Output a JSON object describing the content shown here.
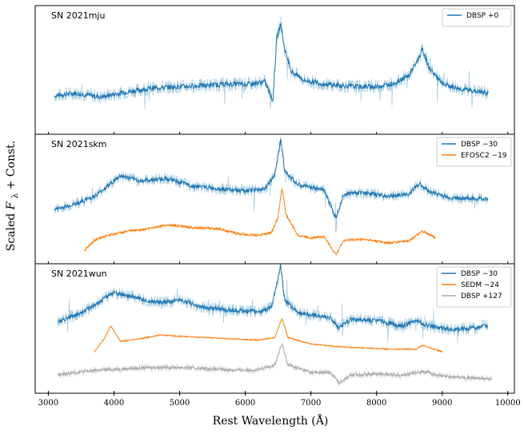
{
  "chart_data": {
    "type": "line",
    "xlabel": "Rest Wavelength (Å)",
    "ylabel": "Scaled F_λ + Const.",
    "ylabel_parts": {
      "main": "Scaled ",
      "sym": "F",
      "sub": "λ",
      "rest": " + Const."
    },
    "xlim": [
      2800,
      10100
    ],
    "xticks": [
      3000,
      4000,
      5000,
      6000,
      7000,
      8000,
      9000,
      10000
    ],
    "xtick_labels": [
      "3000",
      "4000",
      "5000",
      "6000",
      "7000",
      "8000",
      "9000",
      "10000"
    ],
    "panels": [
      {
        "name": "SN 2021mju",
        "ylim": [
          0,
          10
        ],
        "series": [
          {
            "name": "DBSP +0",
            "color": "#1f77b4",
            "legend": "DBSP +0",
            "noise": 0.55,
            "points": [
              [
                3100,
                3.0
              ],
              [
                3400,
                3.2
              ],
              [
                3800,
                2.9
              ],
              [
                4200,
                3.3
              ],
              [
                4600,
                3.6
              ],
              [
                5000,
                3.7
              ],
              [
                5400,
                3.8
              ],
              [
                5800,
                3.9
              ],
              [
                6100,
                3.9
              ],
              [
                6300,
                4.1
              ],
              [
                6420,
                2.6
              ],
              [
                6480,
                7.5
              ],
              [
                6540,
                8.6
              ],
              [
                6600,
                6.6
              ],
              [
                6700,
                4.9
              ],
              [
                6900,
                4.2
              ],
              [
                7200,
                3.9
              ],
              [
                7400,
                3.8
              ],
              [
                7700,
                3.7
              ],
              [
                8000,
                3.7
              ],
              [
                8300,
                4.0
              ],
              [
                8500,
                4.6
              ],
              [
                8650,
                6.0
              ],
              [
                8700,
                6.6
              ],
              [
                8800,
                5.2
              ],
              [
                9000,
                3.9
              ],
              [
                9300,
                3.5
              ],
              [
                9700,
                3.2
              ]
            ]
          }
        ],
        "legend": [
          "DBSP +0"
        ]
      },
      {
        "name": "SN 2021skm",
        "ylim": [
          0,
          10
        ],
        "series": [
          {
            "name": "DBSP -30",
            "color": "#1f77b4",
            "legend": "DBSP −30",
            "noise": 0.45,
            "points": [
              [
                3100,
                4.2
              ],
              [
                3400,
                4.6
              ],
              [
                3700,
                5.2
              ],
              [
                3900,
                6.0
              ],
              [
                4100,
                6.8
              ],
              [
                4400,
                6.4
              ],
              [
                4800,
                6.6
              ],
              [
                5200,
                6.0
              ],
              [
                5600,
                5.8
              ],
              [
                6000,
                5.6
              ],
              [
                6300,
                5.8
              ],
              [
                6450,
                6.8
              ],
              [
                6540,
                9.6
              ],
              [
                6600,
                7.2
              ],
              [
                6800,
                6.1
              ],
              [
                7000,
                5.9
              ],
              [
                7200,
                5.7
              ],
              [
                7380,
                3.6
              ],
              [
                7500,
                5.4
              ],
              [
                7800,
                5.5
              ],
              [
                8200,
                5.2
              ],
              [
                8500,
                5.4
              ],
              [
                8650,
                6.2
              ],
              [
                8800,
                5.6
              ],
              [
                9100,
                5.1
              ],
              [
                9700,
                5.0
              ]
            ]
          },
          {
            "name": "EFOSC2 -19",
            "color": "#ff7f0e",
            "legend": "EFOSC2 −19",
            "noise": 0.25,
            "points": [
              [
                3550,
                1.0
              ],
              [
                3700,
                1.8
              ],
              [
                3900,
                2.2
              ],
              [
                4200,
                2.5
              ],
              [
                4500,
                2.7
              ],
              [
                4800,
                3.0
              ],
              [
                5200,
                2.8
              ],
              [
                5600,
                2.7
              ],
              [
                5900,
                2.3
              ],
              [
                6200,
                2.2
              ],
              [
                6400,
                2.4
              ],
              [
                6500,
                3.6
              ],
              [
                6560,
                5.9
              ],
              [
                6620,
                3.8
              ],
              [
                6800,
                2.2
              ],
              [
                7000,
                2.0
              ],
              [
                7200,
                2.1
              ],
              [
                7380,
                0.7
              ],
              [
                7500,
                1.8
              ],
              [
                7800,
                1.9
              ],
              [
                8200,
                1.6
              ],
              [
                8500,
                1.8
              ],
              [
                8700,
                2.5
              ],
              [
                8900,
                2.0
              ]
            ]
          }
        ],
        "legend": [
          "DBSP −30",
          "EFOSC2 −19"
        ]
      },
      {
        "name": "SN 2021wun",
        "ylim": [
          0,
          10
        ],
        "series": [
          {
            "name": "DBSP -30",
            "color": "#1f77b4",
            "legend": "DBSP −30",
            "noise": 0.5,
            "points": [
              [
                3150,
                5.5
              ],
              [
                3400,
                6.0
              ],
              [
                3700,
                6.8
              ],
              [
                4000,
                7.8
              ],
              [
                4300,
                7.4
              ],
              [
                4700,
                7.0
              ],
              [
                5000,
                7.2
              ],
              [
                5400,
                6.6
              ],
              [
                5800,
                6.4
              ],
              [
                6200,
                6.3
              ],
              [
                6400,
                6.6
              ],
              [
                6540,
                9.8
              ],
              [
                6600,
                7.2
              ],
              [
                6800,
                6.2
              ],
              [
                7100,
                6.0
              ],
              [
                7300,
                5.8
              ],
              [
                7420,
                5.0
              ],
              [
                7600,
                5.7
              ],
              [
                8000,
                5.6
              ],
              [
                8400,
                5.2
              ],
              [
                8600,
                5.6
              ],
              [
                8800,
                5.2
              ],
              [
                9200,
                4.9
              ],
              [
                9700,
                5.2
              ]
            ]
          },
          {
            "name": "SEDM -24",
            "color": "#ff7f0e",
            "legend": "SEDM −24",
            "noise": 0.12,
            "points": [
              [
                3700,
                3.2
              ],
              [
                3850,
                4.2
              ],
              [
                3950,
                5.2
              ],
              [
                4100,
                4.0
              ],
              [
                4400,
                4.2
              ],
              [
                4700,
                4.5
              ],
              [
                5000,
                4.4
              ],
              [
                5400,
                4.3
              ],
              [
                5800,
                4.2
              ],
              [
                6200,
                4.1
              ],
              [
                6450,
                4.3
              ],
              [
                6560,
                5.8
              ],
              [
                6650,
                4.3
              ],
              [
                7000,
                3.8
              ],
              [
                7400,
                3.6
              ],
              [
                7800,
                3.5
              ],
              [
                8200,
                3.4
              ],
              [
                8600,
                3.4
              ],
              [
                8700,
                3.7
              ],
              [
                9000,
                3.2
              ]
            ]
          },
          {
            "name": "DBSP +127",
            "color": "#aaaaaa",
            "legend": "DBSP +127",
            "noise": 0.3,
            "points": [
              [
                3150,
                1.4
              ],
              [
                3400,
                1.6
              ],
              [
                3800,
                1.8
              ],
              [
                4200,
                1.9
              ],
              [
                4600,
                2.0
              ],
              [
                5000,
                2.0
              ],
              [
                5400,
                1.9
              ],
              [
                5800,
                1.8
              ],
              [
                6200,
                1.8
              ],
              [
                6450,
                2.2
              ],
              [
                6560,
                3.8
              ],
              [
                6650,
                2.2
              ],
              [
                7000,
                1.6
              ],
              [
                7300,
                1.6
              ],
              [
                7430,
                0.8
              ],
              [
                7600,
                1.4
              ],
              [
                8000,
                1.5
              ],
              [
                8400,
                1.4
              ],
              [
                8700,
                1.7
              ],
              [
                9000,
                1.3
              ],
              [
                9400,
                1.2
              ],
              [
                9750,
                1.1
              ]
            ]
          }
        ],
        "legend": [
          "DBSP −30",
          "SEDM −24",
          "DBSP +127"
        ]
      }
    ]
  }
}
